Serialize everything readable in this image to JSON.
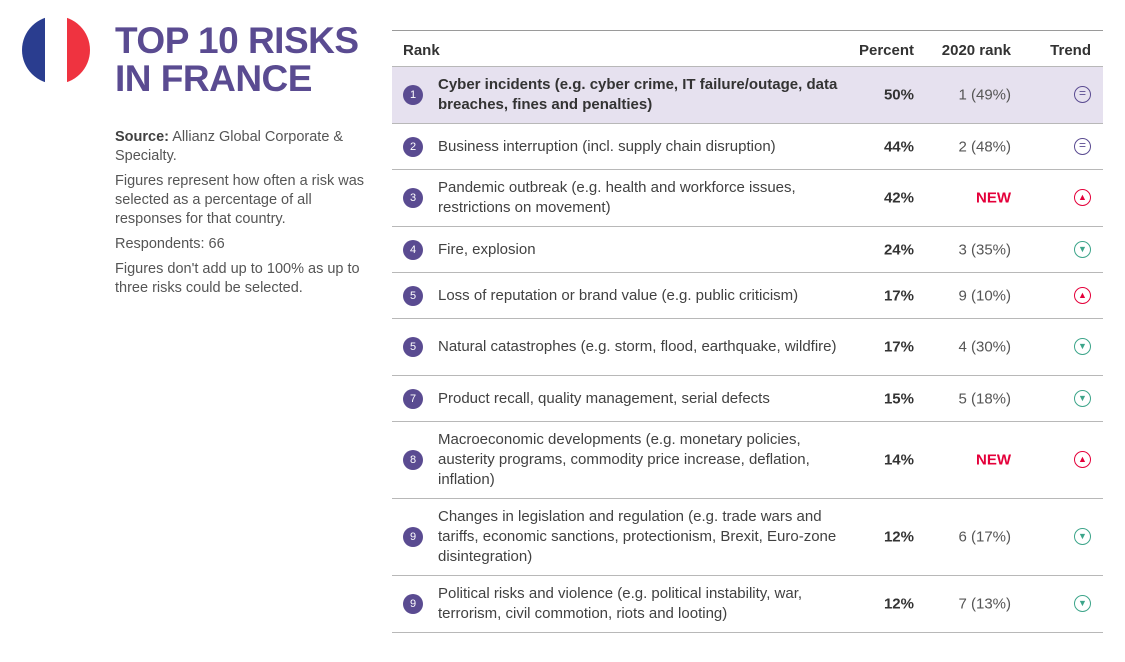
{
  "flag": {
    "colors": [
      "#2a3d8f",
      "#ffffff",
      "#ef3340"
    ]
  },
  "title": {
    "line1": "TOP 10 RISKS",
    "line2": "IN FRANCE"
  },
  "source": {
    "label": "Source:",
    "text": " Allianz Global Corporate & Specialty.",
    "note1": "Figures represent how often a risk was selected as a percentage of all responses for that country.",
    "respondents": "Respondents: 66",
    "note2": "Figures don't add up to 100% as up to three risks could be selected."
  },
  "table": {
    "headers": {
      "rank": "Rank",
      "percent": "Percent",
      "rank2020": "2020 rank",
      "trend": "Trend"
    },
    "rows": [
      {
        "rank": "1",
        "risk": "Cyber incidents (e.g. cyber crime, IT failure/outage, data breaches, fines and penalties)",
        "percent": "50%",
        "rank2020": "1 (49%)",
        "trend": "same",
        "highlight": true
      },
      {
        "rank": "2",
        "risk": "Business interruption (incl. supply chain disruption)",
        "percent": "44%",
        "rank2020": "2 (48%)",
        "trend": "same"
      },
      {
        "rank": "3",
        "risk": "Pandemic outbreak (e.g. health and workforce issues, restrictions on movement)",
        "percent": "42%",
        "rank2020": "NEW",
        "trend": "up"
      },
      {
        "rank": "4",
        "risk": "Fire, explosion",
        "percent": "24%",
        "rank2020": "3 (35%)",
        "trend": "down"
      },
      {
        "rank": "5",
        "risk": "Loss of reputation or brand value (e.g. public criticism)",
        "percent": "17%",
        "rank2020": "9 (10%)",
        "trend": "up"
      },
      {
        "rank": "5",
        "risk": "Natural catastrophes (e.g. storm, flood, earthquake, wildfire)",
        "percent": "17%",
        "rank2020": "4 (30%)",
        "trend": "down"
      },
      {
        "rank": "7",
        "risk": "Product recall, quality management, serial defects",
        "percent": "15%",
        "rank2020": "5 (18%)",
        "trend": "down"
      },
      {
        "rank": "8",
        "risk": "Macroeconomic developments (e.g. monetary policies, austerity programs, commodity price increase, deflation, inflation)",
        "percent": "14%",
        "rank2020": "NEW",
        "trend": "up"
      },
      {
        "rank": "9",
        "risk": "Changes in legislation and regulation (e.g. trade wars and tariffs, economic sanctions, protectionism, Brexit, Euro-zone disintegration)",
        "percent": "12%",
        "rank2020": "6 (17%)",
        "trend": "down"
      },
      {
        "rank": "9",
        "risk": "Political risks and violence (e.g. political instability, war, terrorism, civil commotion, riots and looting)",
        "percent": "12%",
        "rank2020": "7 (13%)",
        "trend": "down"
      }
    ]
  }
}
